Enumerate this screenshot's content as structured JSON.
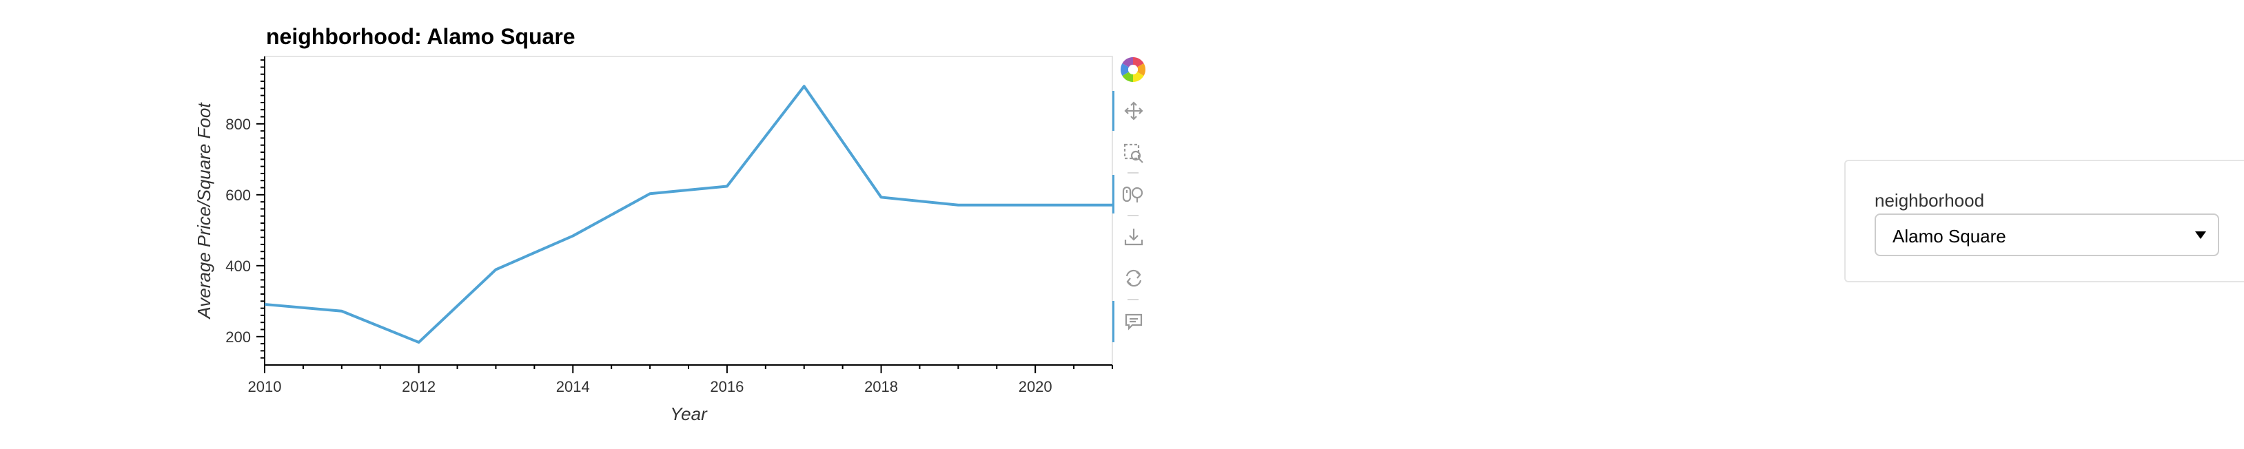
{
  "chart_data": {
    "type": "line",
    "title": "neighborhood: Alamo Square",
    "xlabel": "Year",
    "ylabel": "Average Price/Square Foot",
    "xlim": [
      2010,
      2021
    ],
    "ylim": [
      120,
      990
    ],
    "x_ticks": [
      "2010",
      "2012",
      "2014",
      "2016",
      "2018",
      "2020"
    ],
    "y_ticks": [
      "200",
      "400",
      "600",
      "800"
    ],
    "grid": false,
    "series": [
      {
        "color": "#4fa3d5",
        "x": [
          2010,
          2011,
          2012,
          2013,
          2014,
          2015,
          2016,
          2017,
          2018,
          2019,
          2020,
          2021
        ],
        "y": [
          291,
          272,
          184,
          389,
          484,
          603,
          624,
          906,
          593,
          571,
          571,
          571
        ]
      }
    ]
  },
  "toolbar": {
    "tools": [
      "bokeh-logo-icon",
      "pan-icon",
      "box-zoom-icon",
      "wheel-zoom-icon",
      "save-icon",
      "reset-icon",
      "hover-icon"
    ],
    "active_color": "#4fa3d5"
  },
  "widget": {
    "label": "neighborhood",
    "selected": "Alamo Square"
  }
}
